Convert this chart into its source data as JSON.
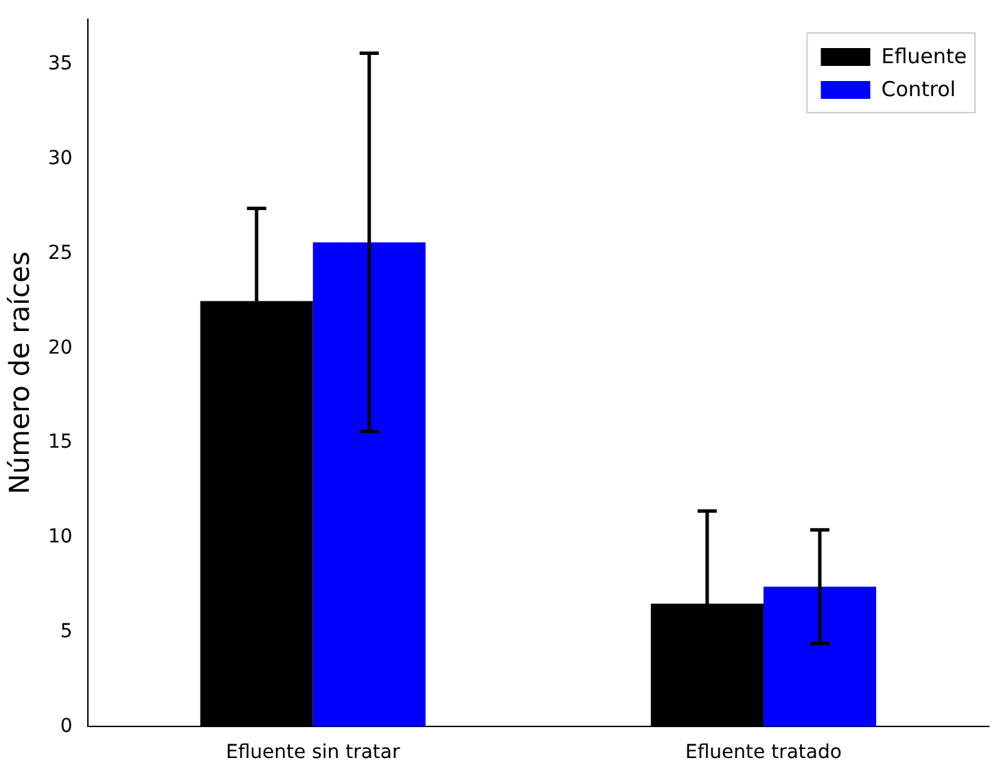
{
  "chart_data": {
    "type": "bar",
    "ylabel": "Número de raíces",
    "categories": [
      "Efluente sin tratar",
      "Efluente tratado"
    ],
    "series": [
      {
        "name": "Efluente",
        "color": "#000000",
        "values": [
          22.5,
          6.5
        ],
        "errors": [
          4.9,
          4.9
        ]
      },
      {
        "name": "Control",
        "color": "#0000ff",
        "values": [
          25.6,
          7.4
        ],
        "errors": [
          10,
          3
        ]
      }
    ],
    "ylim": [
      0,
      37.4
    ],
    "yticks": [
      0,
      5,
      10,
      15,
      20,
      25,
      30,
      35
    ],
    "grid": false,
    "legend": "top right"
  }
}
